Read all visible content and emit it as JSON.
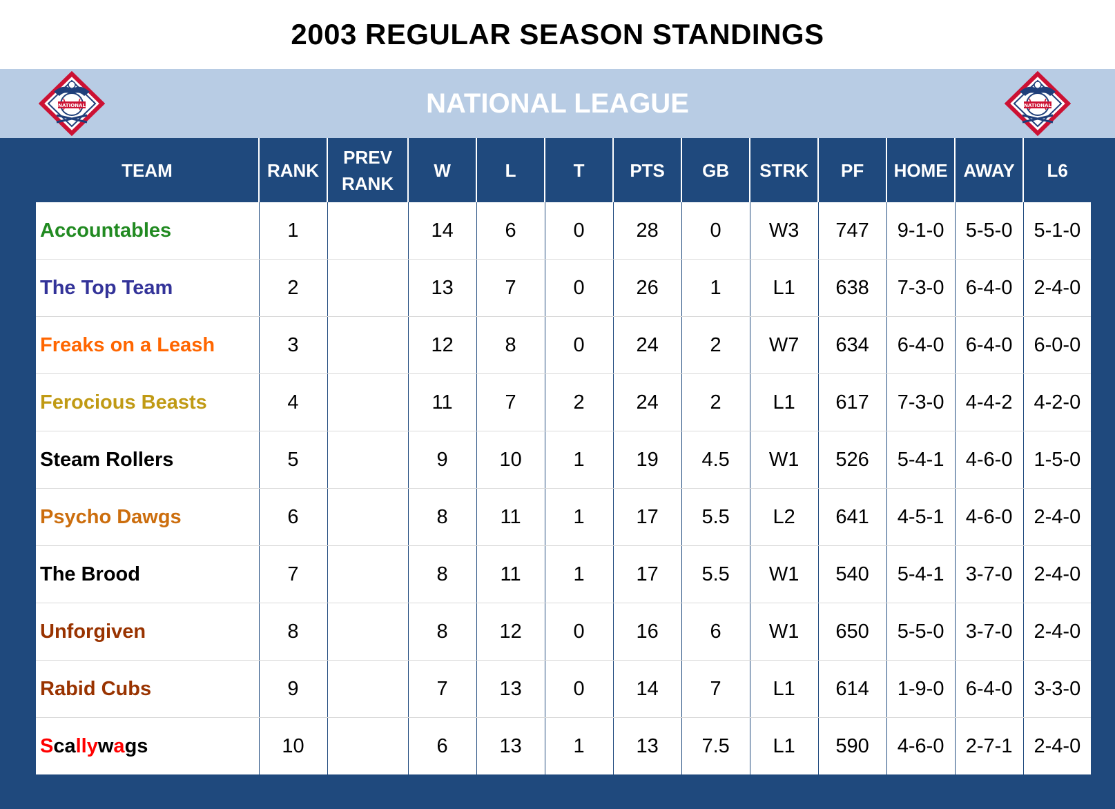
{
  "title": "2003 REGULAR SEASON STANDINGS",
  "league": {
    "name": "NATIONAL LEAGUE",
    "logo_text": "NATIONAL"
  },
  "colors": {
    "header_bg": "#1f497d",
    "league_bar_bg": "#b8cce4"
  },
  "columns": [
    "TEAM",
    "RANK",
    "PREV RANK",
    "W",
    "L",
    "T",
    "PTS",
    "GB",
    "STRK",
    "PF",
    "HOME",
    "AWAY",
    "L6"
  ],
  "rows": [
    {
      "team": "Accountables",
      "color": "#218a21",
      "rank": "1",
      "prev_rank": "",
      "w": "14",
      "l": "6",
      "t": "0",
      "pts": "28",
      "gb": "0",
      "strk": "W3",
      "pf": "747",
      "home": "9-1-0",
      "away": "5-5-0",
      "l6": "5-1-0"
    },
    {
      "team": "The Top Team",
      "color": "#333399",
      "rank": "2",
      "prev_rank": "",
      "w": "13",
      "l": "7",
      "t": "0",
      "pts": "26",
      "gb": "1",
      "strk": "L1",
      "pf": "638",
      "home": "7-3-0",
      "away": "6-4-0",
      "l6": "2-4-0"
    },
    {
      "team": "Freaks on a Leash",
      "color": "#ff6600",
      "rank": "3",
      "prev_rank": "",
      "w": "12",
      "l": "8",
      "t": "0",
      "pts": "24",
      "gb": "2",
      "strk": "W7",
      "pf": "634",
      "home": "6-4-0",
      "away": "6-4-0",
      "l6": "6-0-0"
    },
    {
      "team": "Ferocious Beasts",
      "color": "#c09a14",
      "rank": "4",
      "prev_rank": "",
      "w": "11",
      "l": "7",
      "t": "2",
      "pts": "24",
      "gb": "2",
      "strk": "L1",
      "pf": "617",
      "home": "7-3-0",
      "away": "4-4-2",
      "l6": "4-2-0"
    },
    {
      "team": "Steam Rollers",
      "color": "#000000",
      "rank": "5",
      "prev_rank": "",
      "w": "9",
      "l": "10",
      "t": "1",
      "pts": "19",
      "gb": "4.5",
      "strk": "W1",
      "pf": "526",
      "home": "5-4-1",
      "away": "4-6-0",
      "l6": "1-5-0"
    },
    {
      "team": "Psycho Dawgs",
      "color": "#cc6e0e",
      "rank": "6",
      "prev_rank": "",
      "w": "8",
      "l": "11",
      "t": "1",
      "pts": "17",
      "gb": "5.5",
      "strk": "L2",
      "pf": "641",
      "home": "4-5-1",
      "away": "4-6-0",
      "l6": "2-4-0"
    },
    {
      "team": "The Brood",
      "color": "#000000",
      "rank": "7",
      "prev_rank": "",
      "w": "8",
      "l": "11",
      "t": "1",
      "pts": "17",
      "gb": "5.5",
      "strk": "W1",
      "pf": "540",
      "home": "5-4-1",
      "away": "3-7-0",
      "l6": "2-4-0"
    },
    {
      "team": "Unforgiven",
      "color": "#993300",
      "rank": "8",
      "prev_rank": "",
      "w": "8",
      "l": "12",
      "t": "0",
      "pts": "16",
      "gb": "6",
      "strk": "W1",
      "pf": "650",
      "home": "5-5-0",
      "away": "3-7-0",
      "l6": "2-4-0"
    },
    {
      "team": "Rabid Cubs",
      "color": "#993300",
      "rank": "9",
      "prev_rank": "",
      "w": "7",
      "l": "13",
      "t": "0",
      "pts": "14",
      "gb": "7",
      "strk": "L1",
      "pf": "614",
      "home": "1-9-0",
      "away": "6-4-0",
      "l6": "3-3-0"
    },
    {
      "team": "Scallywags",
      "color": "#000000",
      "rank": "10",
      "prev_rank": "",
      "w": "6",
      "l": "13",
      "t": "1",
      "pts": "13",
      "gb": "7.5",
      "strk": "L1",
      "pf": "590",
      "home": "4-6-0",
      "away": "2-7-1",
      "l6": "2-4-0",
      "team_segments": [
        {
          "text": "S",
          "color": "#ff0000"
        },
        {
          "text": "ca",
          "color": "#000000"
        },
        {
          "text": "lly",
          "color": "#ff0000"
        },
        {
          "text": "w",
          "color": "#000000"
        },
        {
          "text": "a",
          "color": "#ff0000"
        },
        {
          "text": "g",
          "color": "#000000"
        },
        {
          "text": "s",
          "color": "#000000"
        }
      ]
    }
  ]
}
